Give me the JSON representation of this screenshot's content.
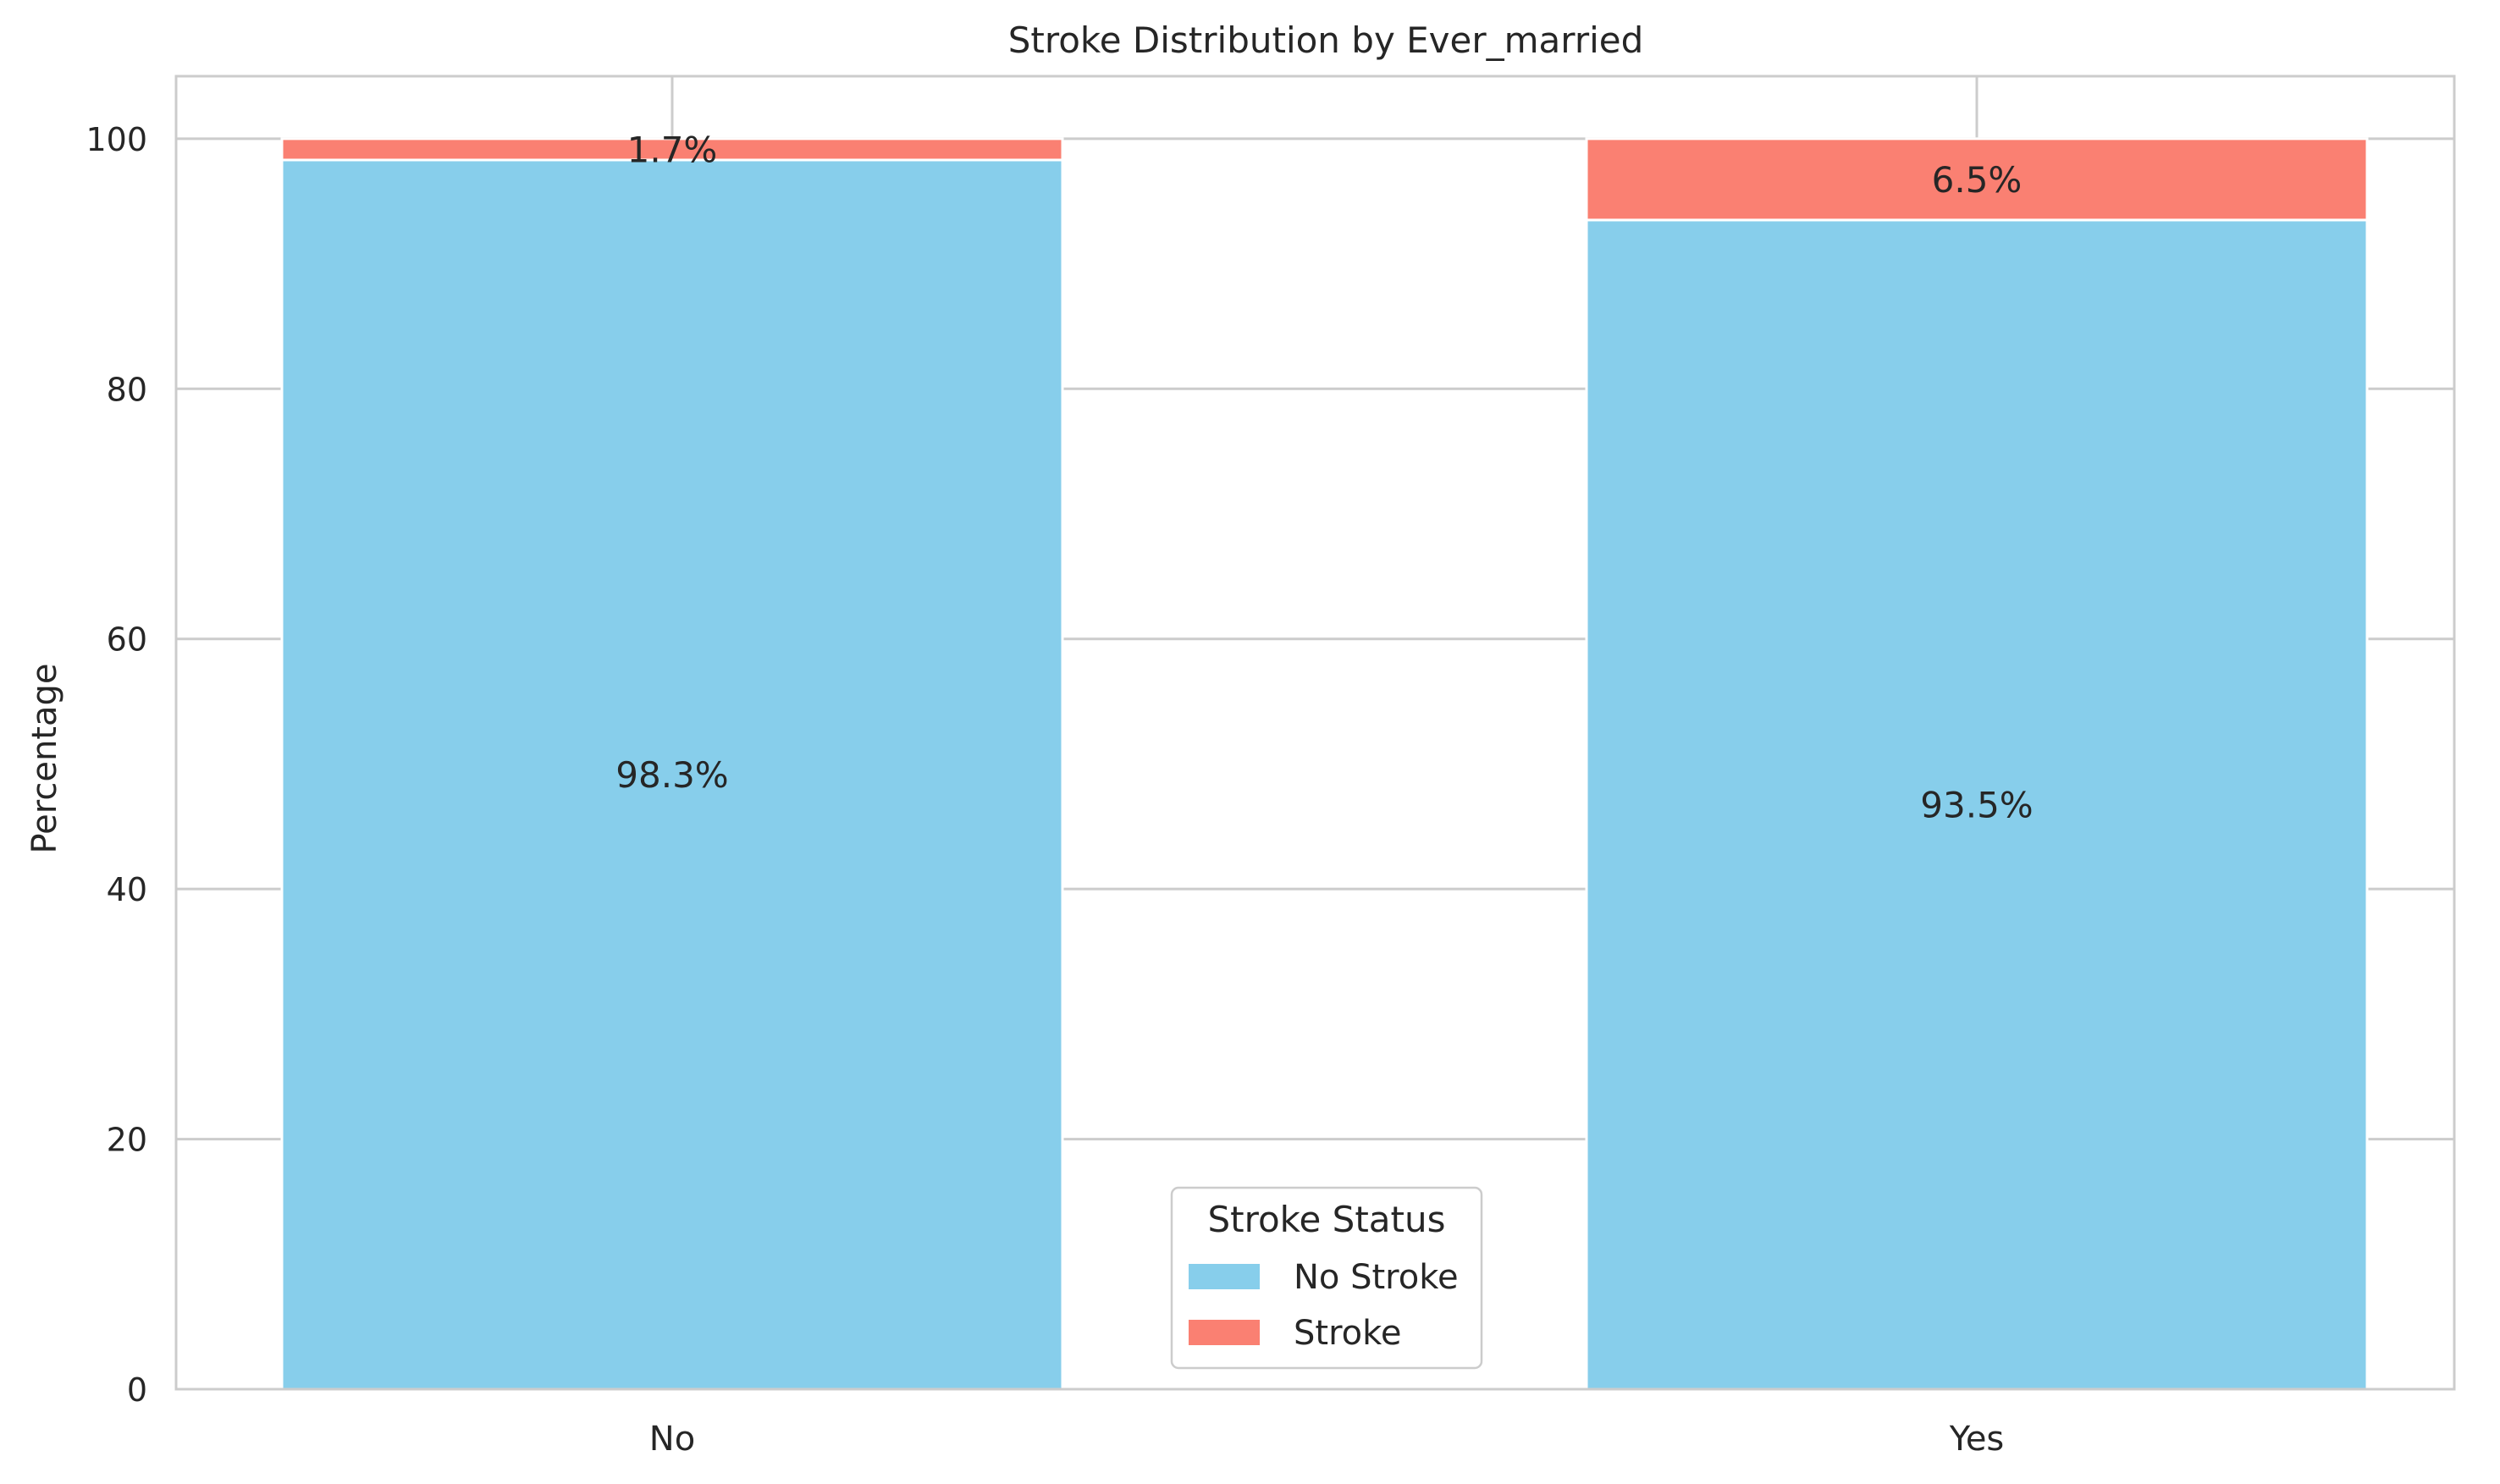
{
  "chart_data": {
    "type": "bar",
    "stacked": true,
    "title": "Stroke Distribution by Ever_married",
    "xlabel": "",
    "ylabel": "Percentage",
    "categories": [
      "No",
      "Yes"
    ],
    "series": [
      {
        "name": "No Stroke",
        "values": [
          98.3,
          93.5
        ],
        "color": "#87ceeb"
      },
      {
        "name": "Stroke",
        "values": [
          1.7,
          6.5
        ],
        "color": "#fa8072"
      }
    ],
    "data_labels": [
      [
        "98.3%",
        "93.5%"
      ],
      [
        "1.7%",
        "6.5%"
      ]
    ],
    "ylim": [
      0,
      105
    ],
    "yticks": [
      0,
      20,
      40,
      60,
      80,
      100
    ],
    "grid": true,
    "legend": {
      "title": "Stroke Status",
      "placement": "lower-center"
    }
  }
}
